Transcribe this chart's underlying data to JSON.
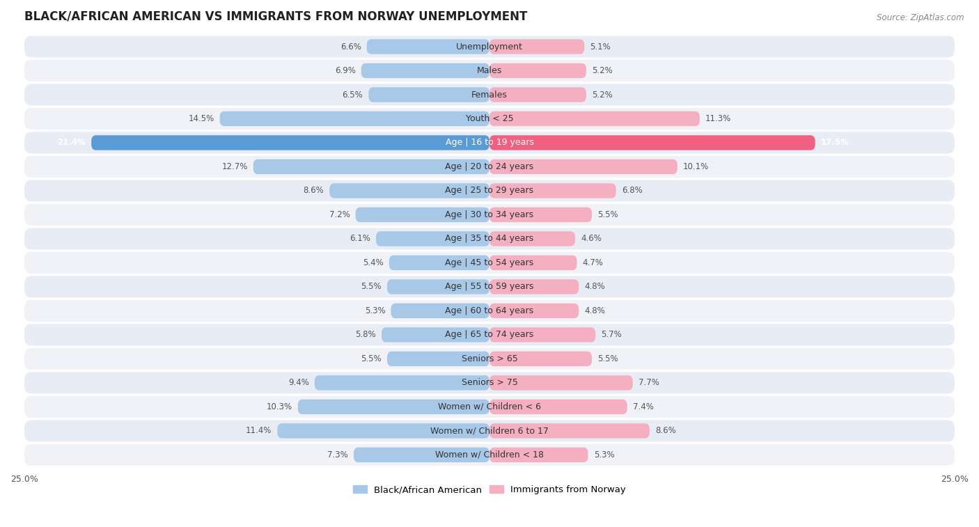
{
  "title": "BLACK/AFRICAN AMERICAN VS IMMIGRANTS FROM NORWAY UNEMPLOYMENT",
  "source": "Source: ZipAtlas.com",
  "categories": [
    "Unemployment",
    "Males",
    "Females",
    "Youth < 25",
    "Age | 16 to 19 years",
    "Age | 20 to 24 years",
    "Age | 25 to 29 years",
    "Age | 30 to 34 years",
    "Age | 35 to 44 years",
    "Age | 45 to 54 years",
    "Age | 55 to 59 years",
    "Age | 60 to 64 years",
    "Age | 65 to 74 years",
    "Seniors > 65",
    "Seniors > 75",
    "Women w/ Children < 6",
    "Women w/ Children 6 to 17",
    "Women w/ Children < 18"
  ],
  "left_values": [
    6.6,
    6.9,
    6.5,
    14.5,
    21.4,
    12.7,
    8.6,
    7.2,
    6.1,
    5.4,
    5.5,
    5.3,
    5.8,
    5.5,
    9.4,
    10.3,
    11.4,
    7.3
  ],
  "right_values": [
    5.1,
    5.2,
    5.2,
    11.3,
    17.5,
    10.1,
    6.8,
    5.5,
    4.6,
    4.7,
    4.8,
    4.8,
    5.7,
    5.5,
    7.7,
    7.4,
    8.6,
    5.3
  ],
  "left_color": "#a8c8e8",
  "right_color": "#f4afc0",
  "highlight_left_color": "#5b9bd5",
  "highlight_right_color": "#f06080",
  "highlight_row": 4,
  "xlim": 25.0,
  "background_color": "#ffffff",
  "row_alt_color": "#e8eaf0",
  "row_base_color": "#f2f4f8",
  "legend_left": "Black/African American",
  "legend_right": "Immigrants from Norway",
  "title_fontsize": 12,
  "label_fontsize": 9,
  "value_fontsize": 8.5
}
